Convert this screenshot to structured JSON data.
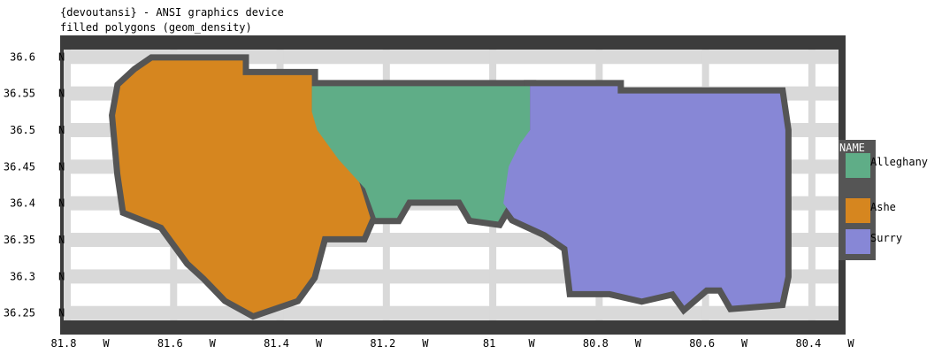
{
  "window": {
    "title_line1": "{devoutansi} - ANSI graphics device",
    "title_line2": "filled polygons (geom_density)"
  },
  "chart_data": {
    "type": "map",
    "xlim": [
      -81.8,
      -80.35
    ],
    "ylim": [
      36.24,
      36.61
    ],
    "x_ticks": [
      {
        "value": -81.8,
        "label": "81.8",
        "suffix": "W"
      },
      {
        "value": -81.6,
        "label": "81.6",
        "suffix": "W"
      },
      {
        "value": -81.4,
        "label": "81.4",
        "suffix": "W"
      },
      {
        "value": -81.2,
        "label": "81.2",
        "suffix": "W"
      },
      {
        "value": -81.0,
        "label": "81",
        "suffix": "W"
      },
      {
        "value": -80.8,
        "label": "80.8",
        "suffix": "W"
      },
      {
        "value": -80.6,
        "label": "80.6",
        "suffix": "W"
      },
      {
        "value": -80.4,
        "label": "80.4",
        "suffix": "W"
      }
    ],
    "y_ticks": [
      {
        "value": 36.6,
        "label": "36.6",
        "suffix": "N"
      },
      {
        "value": 36.55,
        "label": "36.55",
        "suffix": "N"
      },
      {
        "value": 36.5,
        "label": "36.5",
        "suffix": "N"
      },
      {
        "value": 36.45,
        "label": "36.45",
        "suffix": "N"
      },
      {
        "value": 36.4,
        "label": "36.4",
        "suffix": "N"
      },
      {
        "value": 36.35,
        "label": "36.35",
        "suffix": "N"
      },
      {
        "value": 36.3,
        "label": "36.3",
        "suffix": "N"
      },
      {
        "value": 36.25,
        "label": "36.25",
        "suffix": "N"
      }
    ],
    "grid": true,
    "legend": {
      "title": "NAME",
      "position": "right",
      "entries": [
        {
          "name": "Alleghany",
          "color": "#5fad87"
        },
        {
          "name": "Ashe",
          "color": "#d6861f"
        },
        {
          "name": "Surry",
          "color": "#8787d6"
        }
      ]
    },
    "series": [
      {
        "name": "Ashe",
        "color": "#d6861f",
        "coords": [
          [
            -81.55,
            36.595
          ],
          [
            -81.47,
            36.595
          ],
          [
            -81.47,
            36.575
          ],
          [
            -81.34,
            36.575
          ],
          [
            -81.34,
            36.525
          ],
          [
            -81.26,
            36.45
          ],
          [
            -81.23,
            36.38
          ],
          [
            -81.245,
            36.355
          ],
          [
            -81.32,
            36.355
          ],
          [
            -81.34,
            36.3
          ],
          [
            -81.37,
            36.27
          ],
          [
            -81.45,
            36.25
          ],
          [
            -81.5,
            36.27
          ],
          [
            -81.54,
            36.3
          ],
          [
            -81.57,
            36.32
          ],
          [
            -81.62,
            36.37
          ],
          [
            -81.69,
            36.39
          ],
          [
            -81.7,
            36.44
          ],
          [
            -81.71,
            36.52
          ],
          [
            -81.7,
            36.56
          ],
          [
            -81.67,
            36.58
          ],
          [
            -81.64,
            36.595
          ]
        ]
      },
      {
        "name": "Alleghany",
        "color": "#5fad87",
        "coords": [
          [
            -81.34,
            36.56
          ],
          [
            -80.93,
            36.56
          ],
          [
            -80.93,
            36.5
          ],
          [
            -80.96,
            36.46
          ],
          [
            -80.97,
            36.4
          ],
          [
            -80.99,
            36.375
          ],
          [
            -81.04,
            36.38
          ],
          [
            -81.06,
            36.405
          ],
          [
            -81.16,
            36.405
          ],
          [
            -81.18,
            36.38
          ],
          [
            -81.22,
            36.38
          ],
          [
            -81.24,
            36.42
          ],
          [
            -81.29,
            36.46
          ],
          [
            -81.33,
            36.5
          ],
          [
            -81.34,
            36.525
          ]
        ]
      },
      {
        "name": "Surry",
        "color": "#8787d6",
        "coords": [
          [
            -80.93,
            36.56
          ],
          [
            -80.765,
            36.56
          ],
          [
            -80.765,
            36.55
          ],
          [
            -80.46,
            36.55
          ],
          [
            -80.45,
            36.5
          ],
          [
            -80.45,
            36.4
          ],
          [
            -80.45,
            36.36
          ],
          [
            -80.45,
            36.3
          ],
          [
            -80.46,
            36.265
          ],
          [
            -80.55,
            36.26
          ],
          [
            -80.57,
            36.285
          ],
          [
            -80.6,
            36.285
          ],
          [
            -80.64,
            36.26
          ],
          [
            -80.66,
            36.28
          ],
          [
            -80.72,
            36.27
          ],
          [
            -80.78,
            36.28
          ],
          [
            -80.85,
            36.28
          ],
          [
            -80.86,
            36.34
          ],
          [
            -80.9,
            36.36
          ],
          [
            -80.96,
            36.38
          ],
          [
            -80.98,
            36.4
          ],
          [
            -80.97,
            36.45
          ],
          [
            -80.95,
            36.48
          ],
          [
            -80.93,
            36.5
          ]
        ]
      }
    ]
  }
}
